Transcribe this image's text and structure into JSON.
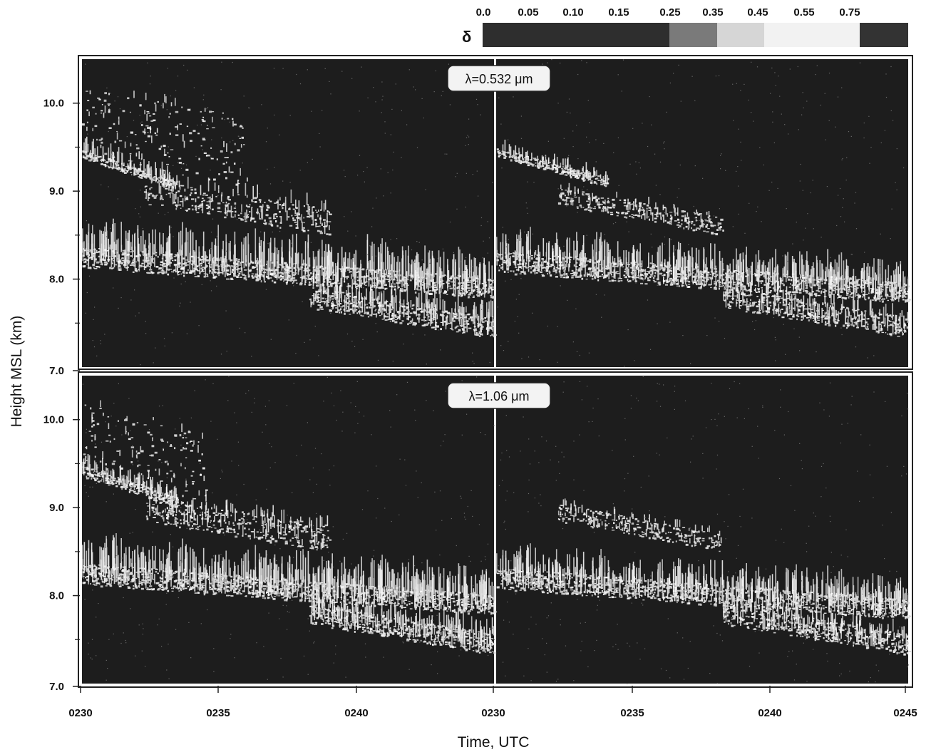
{
  "chart_data": {
    "type": "heatmap",
    "xlabel": "Time, UTC",
    "ylabel": "Height MSL (km)",
    "colorbar": {
      "symbol": "δ",
      "tick_labels": [
        "0.0",
        "0.05",
        "0.10",
        "0.15",
        "0.25",
        "0.35",
        "0.45",
        "0.55",
        "0.75"
      ],
      "segment_colors": [
        "#2e2e2e",
        "#2e2e2e",
        "#2e2e2e",
        "#2e2e2e",
        "#7a7a7a",
        "#d6d6d6",
        "#f2f2f2",
        "#f2f2f2",
        "#333333"
      ]
    },
    "panels": [
      {
        "label": "λ=0.532 μm",
        "y_ticks": [
          "10.0",
          "9.0",
          "8.0",
          "7.0"
        ],
        "ylim": [
          7.0,
          10.5
        ],
        "halves": [
          {
            "x_ticks": [
              "0230",
              "0235",
              "0240"
            ],
            "layers": [
              {
                "t0": 0.0,
                "t1": 0.23,
                "h": 9.42,
                "th": 0.05,
                "spread": 0.6,
                "density": 0.6
              },
              {
                "t0": 0.0,
                "t1": 0.4,
                "h": 9.8,
                "th": 0.4,
                "spread": 0.3,
                "density": 0.25
              },
              {
                "t0": 0.15,
                "t1": 0.6,
                "h": 9.0,
                "th": 0.15,
                "spread": 0.5,
                "density": 0.4
              },
              {
                "t0": 0.0,
                "t1": 1.0,
                "h": 8.25,
                "th": 0.12,
                "spread": 1.2,
                "density": 0.8
              },
              {
                "t0": 0.55,
                "t1": 1.0,
                "h": 7.8,
                "th": 0.12,
                "spread": 0.8,
                "density": 0.7
              }
            ]
          },
          {
            "x_ticks": [
              "0230",
              "0235",
              "0240",
              "0245"
            ],
            "layers": [
              {
                "t0": 0.0,
                "t1": 0.27,
                "h": 9.45,
                "th": 0.05,
                "spread": 0.4,
                "density": 0.6
              },
              {
                "t0": 0.15,
                "t1": 0.55,
                "h": 8.95,
                "th": 0.1,
                "spread": 0.3,
                "density": 0.4
              },
              {
                "t0": 0.0,
                "t1": 1.0,
                "h": 8.2,
                "th": 0.12,
                "spread": 1.0,
                "density": 0.8
              },
              {
                "t0": 0.55,
                "t1": 1.0,
                "h": 7.8,
                "th": 0.12,
                "spread": 0.6,
                "density": 0.6
              }
            ]
          }
        ]
      },
      {
        "label": "λ=1.06 μm",
        "y_ticks": [
          "10.0",
          "9.0",
          "8.0",
          "7.0"
        ],
        "ylim": [
          7.0,
          10.5
        ],
        "halves": [
          {
            "x_ticks": [
              "0230",
              "0235",
              "0240"
            ],
            "layers": [
              {
                "t0": 0.0,
                "t1": 0.23,
                "h": 9.42,
                "th": 0.06,
                "spread": 0.6,
                "density": 0.7
              },
              {
                "t0": 0.0,
                "t1": 0.3,
                "h": 9.8,
                "th": 0.4,
                "spread": 0.3,
                "density": 0.3
              },
              {
                "t0": 0.15,
                "t1": 0.6,
                "h": 9.0,
                "th": 0.15,
                "spread": 0.5,
                "density": 0.5
              },
              {
                "t0": 0.0,
                "t1": 1.0,
                "h": 8.25,
                "th": 0.12,
                "spread": 1.2,
                "density": 0.9
              },
              {
                "t0": 0.55,
                "t1": 1.0,
                "h": 7.8,
                "th": 0.12,
                "spread": 0.8,
                "density": 0.8
              }
            ]
          },
          {
            "x_ticks": [
              "0230",
              "0235",
              "0240",
              "0245"
            ],
            "layers": [
              {
                "t0": 0.15,
                "t1": 0.55,
                "h": 8.95,
                "th": 0.1,
                "spread": 0.3,
                "density": 0.4
              },
              {
                "t0": 0.0,
                "t1": 1.0,
                "h": 8.2,
                "th": 0.12,
                "spread": 1.0,
                "density": 0.85
              },
              {
                "t0": 0.55,
                "t1": 1.0,
                "h": 7.8,
                "th": 0.12,
                "spread": 0.6,
                "density": 0.7
              }
            ]
          }
        ]
      }
    ]
  }
}
